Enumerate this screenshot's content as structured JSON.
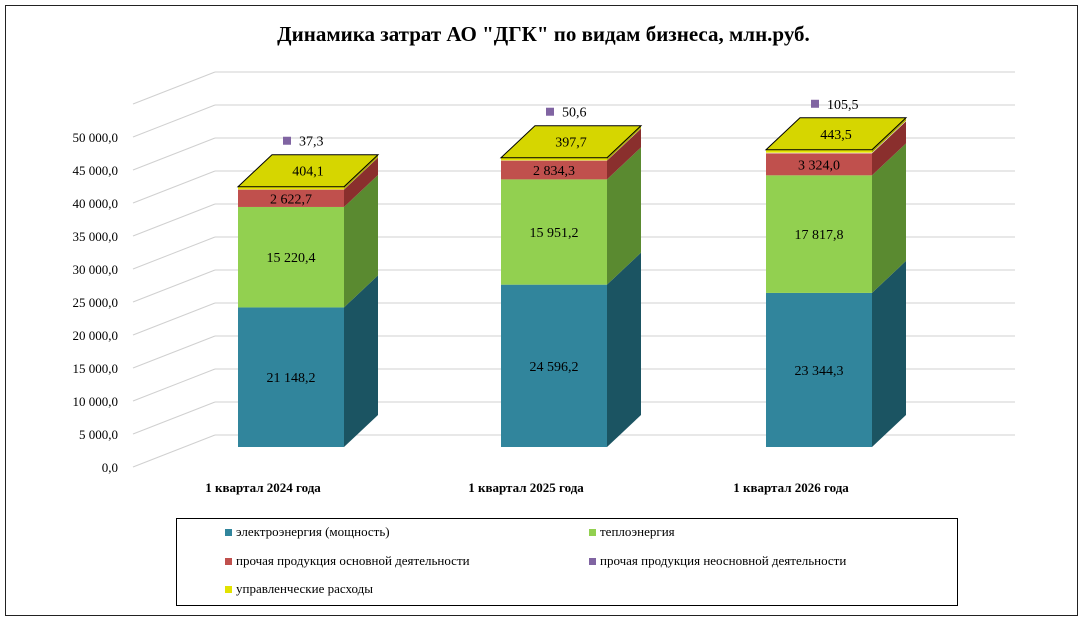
{
  "chart_data": {
    "type": "bar",
    "stacked": true,
    "three_d": true,
    "title": "Динамика затрат  АО \"ДГК\" по видам  бизнеса, млн.руб.",
    "xlabel": "",
    "ylabel": "",
    "ylim": [
      0,
      55000
    ],
    "yticks": [
      0,
      5000,
      10000,
      15000,
      20000,
      25000,
      30000,
      35000,
      40000,
      45000,
      50000
    ],
    "ytick_labels": [
      "0,0",
      "5 000,0",
      "10 000,0",
      "15 000,0",
      "20 000,0",
      "25 000,0",
      "30 000,0",
      "35 000,0",
      "40 000,0",
      "45 000,0",
      "50 000,0"
    ],
    "grid": true,
    "legend_position": "bottom",
    "categories": [
      "1 квартал 2024 года",
      "1 квартал 2025 года",
      "1 квартал 2026 года"
    ],
    "series": [
      {
        "name": "электроэнергия  (мощность)",
        "values": [
          21148.2,
          24596.2,
          23344.3
        ],
        "labels": [
          "21 148,2",
          "24 596,2",
          "23 344,3"
        ],
        "color": "#31859c",
        "side_color": "#1b5462",
        "top_color": "#3fa3bd"
      },
      {
        "name": "теплоэнергия",
        "values": [
          15220.4,
          15951.2,
          17817.8
        ],
        "labels": [
          "15 220,4",
          "15 951,2",
          "17 817,8"
        ],
        "color": "#92d050",
        "side_color": "#5a8a30",
        "top_color": "#b2e57a"
      },
      {
        "name": "прочая  продукция  основной  деятельности",
        "values": [
          2622.7,
          2834.3,
          3324.0
        ],
        "labels": [
          "2 622,7",
          "2 834,3",
          "3 324,0"
        ],
        "color": "#c0504d",
        "side_color": "#8a2f2d",
        "top_color": "#d57370"
      },
      {
        "name": "прочая  продукция  неосновной  деятельности",
        "values": [
          37.3,
          50.6,
          105.5
        ],
        "labels": [
          "37,3",
          "50,6",
          "105,5"
        ],
        "color": "#8064a2",
        "side_color": "#5a4674",
        "top_color": "#9d84bb"
      },
      {
        "name": "управленческие  расходы",
        "values": [
          404.1,
          397.7,
          443.5
        ],
        "labels": [
          "404,1",
          "397,7",
          "443,5"
        ],
        "color": "#e2e200",
        "side_color": "#a8a800",
        "top_color": "#d6d600"
      }
    ]
  }
}
